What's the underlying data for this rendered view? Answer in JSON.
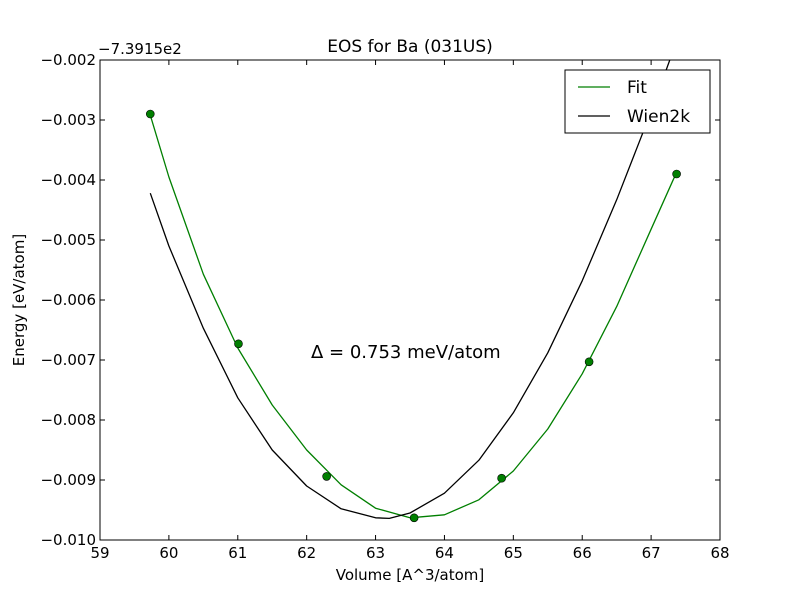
{
  "chart_data": {
    "type": "line",
    "title": "EOS for Ba (031US)",
    "xlabel": "Volume [A^3/atom]",
    "ylabel": "Energy [eV/atom]",
    "y_offset_label": "−7.3915e2",
    "xlim": [
      59,
      68
    ],
    "ylim": [
      -0.01,
      -0.002
    ],
    "x_ticks": [
      59,
      60,
      61,
      62,
      63,
      64,
      65,
      66,
      67,
      68
    ],
    "y_ticks": [
      -0.002,
      -0.003,
      -0.004,
      -0.005,
      -0.006,
      -0.007,
      -0.008,
      -0.009,
      -0.01
    ],
    "y_tick_labels": [
      "−0.002",
      "−0.003",
      "−0.004",
      "−0.005",
      "−0.006",
      "−0.007",
      "−0.008",
      "−0.009",
      "−0.010"
    ],
    "grid": false,
    "legend_position": "top-right",
    "annotation": "Δ = 0.753 meV/atom",
    "points": {
      "color": "#007f00",
      "x": [
        59.73,
        61.01,
        62.29,
        63.56,
        64.83,
        66.1,
        67.37
      ],
      "y": [
        -0.0029,
        -0.00673,
        -0.00894,
        -0.00963,
        -0.00897,
        -0.00703,
        -0.0039
      ]
    },
    "series": [
      {
        "name": "Fit",
        "color": "#007f00",
        "x": [
          59.73,
          60.0,
          60.5,
          61.0,
          61.5,
          62.0,
          62.5,
          63.0,
          63.5,
          64.0,
          64.5,
          65.0,
          65.5,
          66.0,
          66.5,
          67.0,
          67.37
        ],
        "y": [
          -0.00292,
          -0.00395,
          -0.00557,
          -0.0068,
          -0.00775,
          -0.0085,
          -0.00908,
          -0.00947,
          -0.00963,
          -0.00958,
          -0.00933,
          -0.00885,
          -0.00815,
          -0.00723,
          -0.00611,
          -0.00482,
          -0.00387
        ]
      },
      {
        "name": "Wien2k",
        "color": "#000000",
        "x": [
          59.73,
          60.0,
          60.5,
          61.0,
          61.5,
          62.0,
          62.5,
          63.0,
          63.2,
          63.5,
          64.0,
          64.5,
          65.0,
          65.5,
          66.0,
          66.5,
          67.0,
          67.35
        ],
        "y": [
          -0.00422,
          -0.0051,
          -0.00647,
          -0.00763,
          -0.0085,
          -0.0091,
          -0.00948,
          -0.00963,
          -0.00964,
          -0.00955,
          -0.00922,
          -0.00867,
          -0.00788,
          -0.00688,
          -0.00568,
          -0.00433,
          -0.00286,
          -0.00175
        ]
      }
    ]
  }
}
